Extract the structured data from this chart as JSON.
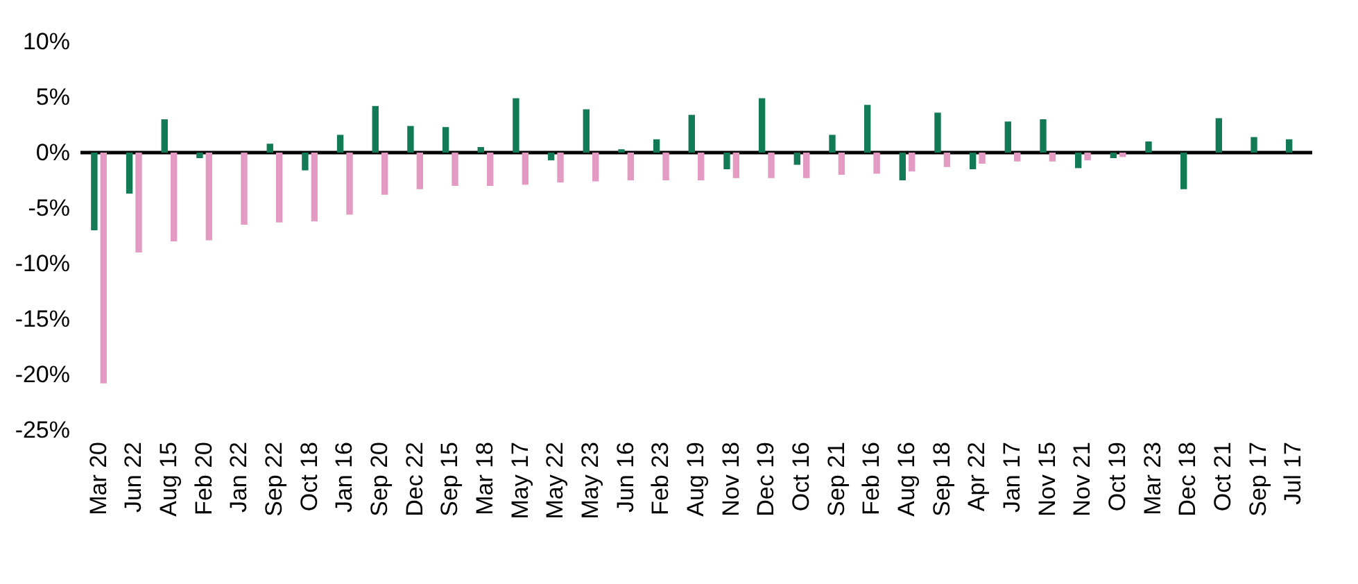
{
  "chart_data": {
    "type": "bar",
    "categories": [
      "Mar 20",
      "Jun 22",
      "Aug 15",
      "Feb 20",
      "Jan 22",
      "Sep 22",
      "Oct 18",
      "Jan 16",
      "Sep 20",
      "Dec 22",
      "Sep 15",
      "Mar 18",
      "May 17",
      "May 22",
      "May 23",
      "Jun 16",
      "Feb 23",
      "Aug 19",
      "Nov 18",
      "Dec 19",
      "Oct 16",
      "Sep 21",
      "Feb 16",
      "Aug 16",
      "Sep 18",
      "Apr 22",
      "Jan 17",
      "Nov 15",
      "Nov 21",
      "Oct 19",
      "Mar 23",
      "Dec 18",
      "Oct 21",
      "Sep 17",
      "Jul 17"
    ],
    "series": [
      {
        "color": "#127a55",
        "values": [
          -7.0,
          -3.7,
          3.0,
          -0.5,
          0,
          0.8,
          -1.6,
          1.6,
          4.2,
          2.4,
          2.3,
          0.5,
          4.9,
          -0.7,
          3.9,
          0.3,
          1.2,
          3.4,
          -1.5,
          4.9,
          -1.1,
          1.6,
          4.3,
          -2.5,
          3.6,
          -1.5,
          2.8,
          3.0,
          -1.4,
          -0.5,
          1.0,
          -3.3,
          3.1,
          1.4,
          1.2
        ]
      },
      {
        "color": "#e39bc4",
        "values": [
          -20.8,
          -9.0,
          -8.0,
          -7.9,
          -6.5,
          -6.3,
          -6.2,
          -5.6,
          -3.8,
          -3.3,
          -3.0,
          -3.0,
          -2.9,
          -2.7,
          -2.6,
          -2.5,
          -2.5,
          -2.5,
          -2.3,
          -2.3,
          -2.3,
          -2.0,
          -1.9,
          -1.7,
          -1.3,
          -1.0,
          -0.8,
          -0.8,
          -0.7,
          -0.4,
          null,
          null,
          null,
          null,
          null
        ]
      }
    ],
    "ylim": [
      -25,
      10
    ],
    "yticks": [
      {
        "value": -25,
        "label": "-25%"
      },
      {
        "value": -20,
        "label": "-20%"
      },
      {
        "value": -15,
        "label": "-15%"
      },
      {
        "value": -10,
        "label": "-10%"
      },
      {
        "value": -5,
        "label": "-5%"
      },
      {
        "value": 0,
        "label": "0%"
      },
      {
        "value": 5,
        "label": "5%"
      },
      {
        "value": 10,
        "label": "10%"
      }
    ],
    "ref_lines": [
      {
        "axis": "y",
        "value": 0,
        "color": "#000000"
      }
    ],
    "grid": false,
    "legend": false
  }
}
